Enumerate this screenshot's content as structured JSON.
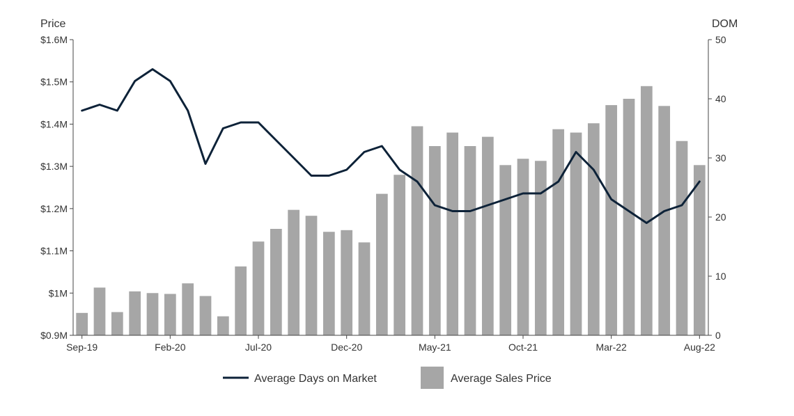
{
  "chart_data": {
    "type": "bar",
    "title": "",
    "x": [
      "Sep-19",
      "Oct-19",
      "Nov-19",
      "Dec-19",
      "Jan-20",
      "Feb-20",
      "Mar-20",
      "Apr-20",
      "May-20",
      "Jun-20",
      "Jul-20",
      "Aug-20",
      "Sep-20",
      "Oct-20",
      "Nov-20",
      "Dec-20",
      "Jan-21",
      "Feb-21",
      "Mar-21",
      "Apr-21",
      "May-21",
      "Jun-21",
      "Jul-21",
      "Aug-21",
      "Sep-21",
      "Oct-21",
      "Nov-21",
      "Dec-21",
      "Jan-22",
      "Feb-22",
      "Mar-22",
      "Apr-22",
      "May-22",
      "Jun-22",
      "Jul-22",
      "Aug-22"
    ],
    "x_tick_labels": [
      "Sep-19",
      "Feb-20",
      "Jul-20",
      "Dec-20",
      "May-21",
      "Oct-21",
      "Mar-22",
      "Aug-22"
    ],
    "y_left": {
      "label": "Price",
      "ylim": [
        0.9,
        1.6
      ],
      "ticks": [
        0.9,
        1.0,
        1.1,
        1.2,
        1.3,
        1.4,
        1.5,
        1.6
      ],
      "tick_labels": [
        "$0.9M",
        "$1M",
        "$1.1M",
        "$1.2M",
        "$1.3M",
        "$1.4M",
        "$1.5M",
        "$1.6M"
      ]
    },
    "y_right": {
      "label": "DOM",
      "ylim": [
        0,
        50
      ],
      "ticks": [
        0,
        10,
        20,
        30,
        40,
        50
      ],
      "tick_labels": [
        "0",
        "10",
        "20",
        "30",
        "40",
        "50"
      ]
    },
    "series": [
      {
        "name": "Average Sales Price",
        "type": "bar",
        "axis": "left",
        "color": "#a6a6a6",
        "values": [
          0.953,
          1.013,
          0.955,
          1.004,
          1.0,
          0.998,
          1.023,
          0.993,
          0.945,
          1.063,
          1.122,
          1.152,
          1.197,
          1.183,
          1.145,
          1.149,
          1.12,
          1.235,
          1.28,
          1.395,
          1.348,
          1.38,
          1.348,
          1.37,
          1.303,
          1.318,
          1.313,
          1.388,
          1.38,
          1.402,
          1.445,
          1.46,
          1.49,
          1.443,
          1.36,
          1.303
        ]
      },
      {
        "name": "Average Days on Market",
        "type": "line",
        "axis": "right",
        "color": "#0d2238",
        "values": [
          38,
          39,
          38,
          43,
          45,
          43,
          38,
          29,
          35,
          36,
          36,
          33,
          30,
          27,
          27,
          28,
          31,
          32,
          28,
          26,
          22,
          21,
          21,
          22,
          23,
          24,
          24,
          26,
          31,
          28,
          23,
          21,
          19,
          21,
          22,
          26
        ]
      }
    ],
    "legend": {
      "position": "bottom",
      "items": [
        {
          "name": "Average Days on Market",
          "marker": "line",
          "color": "#0d2238"
        },
        {
          "name": "Average Sales Price",
          "marker": "square",
          "color": "#a6a6a6"
        }
      ]
    }
  }
}
